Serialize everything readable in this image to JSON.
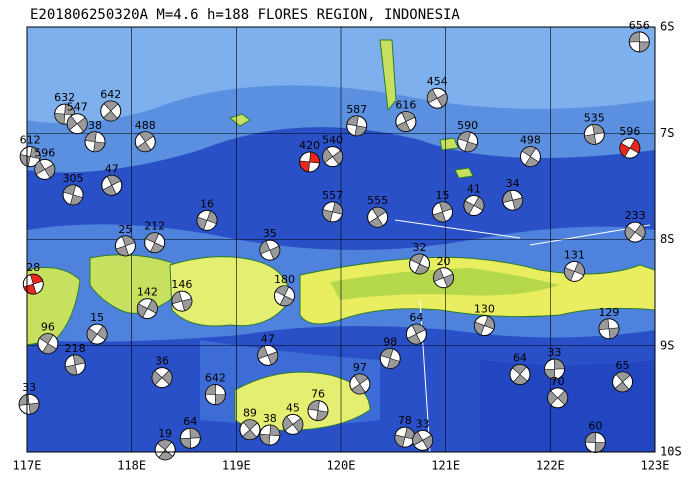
{
  "title": "E201806250320A  M=4.6  h=188  FLORES REGION, INDONESIA",
  "lonlim": [
    117,
    123
  ],
  "latlim": [
    -6,
    -10
  ],
  "lonticks": [
    {
      "value": 117,
      "label": "117E"
    },
    {
      "value": 118,
      "label": "118E"
    },
    {
      "value": 119,
      "label": "119E"
    },
    {
      "value": 120,
      "label": "120E"
    },
    {
      "value": 121,
      "label": "121E"
    },
    {
      "value": 122,
      "label": "122E"
    },
    {
      "value": 123,
      "label": "123E"
    }
  ],
  "latticks": [
    {
      "value": -6,
      "label": "6S"
    },
    {
      "value": -7,
      "label": "7S"
    },
    {
      "value": -8,
      "label": "8S"
    },
    {
      "value": -9,
      "label": "9S"
    },
    {
      "value": -10,
      "label": "10S"
    }
  ],
  "grid": true,
  "mechanism_color": "#9a9a9a",
  "events": [
    {
      "lon": 122.85,
      "lat": -6.14,
      "depth": 656
    },
    {
      "lon": 117.8,
      "lat": -6.79,
      "depth": 642
    },
    {
      "lon": 117.36,
      "lat": -6.82,
      "depth": 632
    },
    {
      "lon": 117.48,
      "lat": -6.91,
      "depth": 547
    },
    {
      "lon": 117.65,
      "lat": -7.08,
      "depth": 38
    },
    {
      "lon": 118.13,
      "lat": -7.08,
      "depth": 488
    },
    {
      "lon": 117.03,
      "lat": -7.22,
      "depth": 612
    },
    {
      "lon": 117.17,
      "lat": -7.34,
      "depth": 596
    },
    {
      "lon": 117.44,
      "lat": -7.58,
      "depth": 305
    },
    {
      "lon": 117.81,
      "lat": -7.49,
      "depth": 47
    },
    {
      "lon": 118.72,
      "lat": -7.82,
      "depth": 16
    },
    {
      "lon": 119.32,
      "lat": -8.1,
      "depth": 35
    },
    {
      "lon": 118.22,
      "lat": -8.03,
      "depth": 212
    },
    {
      "lon": 117.94,
      "lat": -8.06,
      "depth": 25
    },
    {
      "lon": 118.15,
      "lat": -8.65,
      "depth": 142
    },
    {
      "lon": 118.48,
      "lat": -8.58,
      "depth": 146
    },
    {
      "lon": 117.2,
      "lat": -8.98,
      "depth": 96
    },
    {
      "lon": 117.46,
      "lat": -9.18,
      "depth": 218
    },
    {
      "lon": 117.67,
      "lat": -8.89,
      "depth": 15
    },
    {
      "lon": 117.02,
      "lat": -9.55,
      "depth": 33
    },
    {
      "lon": 118.32,
      "lat": -9.98,
      "depth": 19
    },
    {
      "lon": 118.56,
      "lat": -9.87,
      "depth": 64
    },
    {
      "lon": 118.29,
      "lat": -9.3,
      "depth": 36
    },
    {
      "lon": 118.8,
      "lat": -9.46,
      "depth": 642
    },
    {
      "lon": 119.13,
      "lat": -9.79,
      "depth": 89
    },
    {
      "lon": 119.32,
      "lat": -9.84,
      "depth": 38
    },
    {
      "lon": 119.54,
      "lat": -9.74,
      "depth": 45
    },
    {
      "lon": 119.78,
      "lat": -9.61,
      "depth": 76
    },
    {
      "lon": 120.18,
      "lat": -9.36,
      "depth": 97
    },
    {
      "lon": 120.61,
      "lat": -9.86,
      "depth": 78
    },
    {
      "lon": 120.78,
      "lat": -9.89,
      "depth": 33
    },
    {
      "lon": 120.47,
      "lat": -9.12,
      "depth": 98
    },
    {
      "lon": 120.72,
      "lat": -8.89,
      "depth": 64
    },
    {
      "lon": 121.37,
      "lat": -8.81,
      "depth": 130
    },
    {
      "lon": 120.98,
      "lat": -8.36,
      "depth": 20
    },
    {
      "lon": 120.75,
      "lat": -8.23,
      "depth": 32
    },
    {
      "lon": 120.97,
      "lat": -7.74,
      "depth": 15
    },
    {
      "lon": 121.27,
      "lat": -7.68,
      "depth": 41
    },
    {
      "lon": 121.64,
      "lat": -7.63,
      "depth": 34
    },
    {
      "lon": 121.81,
      "lat": -7.22,
      "depth": 498
    },
    {
      "lon": 122.42,
      "lat": -7.01,
      "depth": 535
    },
    {
      "lon": 122.81,
      "lat": -7.93,
      "depth": 233
    },
    {
      "lon": 122.56,
      "lat": -8.84,
      "depth": 129
    },
    {
      "lon": 121.71,
      "lat": -9.27,
      "depth": 64
    },
    {
      "lon": 122.04,
      "lat": -9.22,
      "depth": 33
    },
    {
      "lon": 122.07,
      "lat": -9.49,
      "depth": 70
    },
    {
      "lon": 122.43,
      "lat": -9.91,
      "depth": 60
    },
    {
      "lon": 122.69,
      "lat": -9.34,
      "depth": 65
    },
    {
      "lon": 119.7,
      "lat": -7.27,
      "depth": 420,
      "color": "#e8281e"
    },
    {
      "lon": 119.92,
      "lat": -7.22,
      "depth": 540
    },
    {
      "lon": 120.15,
      "lat": -6.93,
      "depth": 587
    },
    {
      "lon": 120.35,
      "lat": -7.79,
      "depth": 555
    },
    {
      "lon": 119.92,
      "lat": -7.74,
      "depth": 557
    },
    {
      "lon": 120.92,
      "lat": -6.67,
      "depth": 454
    },
    {
      "lon": 121.21,
      "lat": -7.08,
      "depth": 590
    },
    {
      "lon": 120.62,
      "lat": -6.89,
      "depth": 616
    },
    {
      "lon": 122.23,
      "lat": -8.3,
      "depth": 131
    },
    {
      "lon": 119.3,
      "lat": -9.09,
      "depth": 47
    },
    {
      "lon": 119.46,
      "lat": -8.53,
      "depth": 180
    },
    {
      "lon": 117.06,
      "lat": -8.42,
      "depth": 28,
      "color": "#e8281e"
    },
    {
      "lon": 122.76,
      "lat": -7.14,
      "depth": 596,
      "color": "#e8281e"
    }
  ]
}
